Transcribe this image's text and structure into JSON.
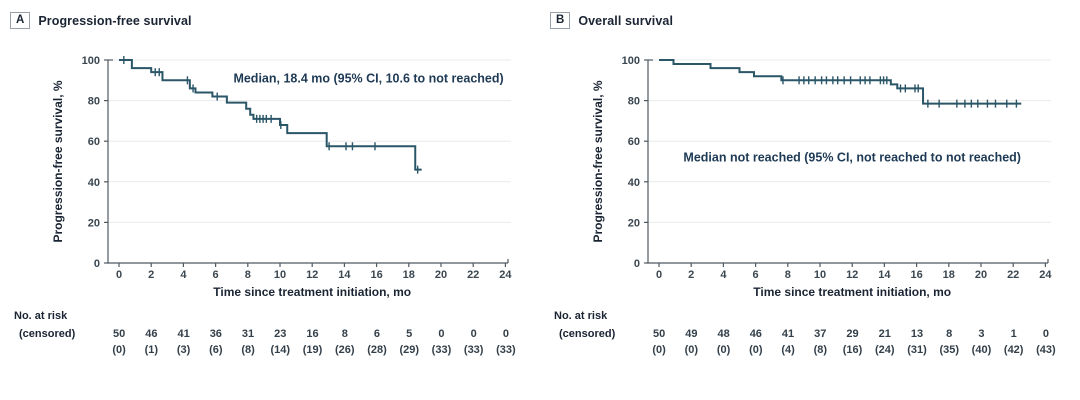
{
  "figure": {
    "background": "#ffffff",
    "axis_color": "#4f5960",
    "grid_color": "#e9ebec",
    "text_color": "#1a2433"
  },
  "chart_data": [
    {
      "type": "line",
      "subtype": "kaplan_meier_step",
      "panel_label": "A",
      "title": "Progression-free survival",
      "annotation": "Median, 18.4 mo (95% CI, 10.6 to not reached)",
      "annotation_anchor": {
        "t": 15.5,
        "pct": 89
      },
      "median_months": "18.4",
      "xlabel": "Time since treatment initiation, mo",
      "ylabel": "Progression-free survival, %",
      "xlim": [
        0,
        24
      ],
      "ylim": [
        0,
        100
      ],
      "x_ticks": [
        0,
        2,
        4,
        6,
        8,
        10,
        12,
        14,
        16,
        18,
        20,
        22,
        24
      ],
      "y_ticks": [
        0,
        20,
        40,
        60,
        80,
        100
      ],
      "grid": "horizontal",
      "legend": "none",
      "color": "#2a5668",
      "steps": [
        [
          0,
          100
        ],
        [
          0.8,
          96
        ],
        [
          2.0,
          94
        ],
        [
          2.7,
          90
        ],
        [
          4.4,
          86
        ],
        [
          4.75,
          84
        ],
        [
          5.8,
          82
        ],
        [
          6.7,
          79
        ],
        [
          7.9,
          76
        ],
        [
          8.15,
          73
        ],
        [
          8.35,
          71
        ],
        [
          10.0,
          68
        ],
        [
          10.45,
          64
        ],
        [
          12.9,
          57.5
        ],
        [
          18.4,
          46
        ]
      ],
      "end_time": 18.8,
      "censor_times": [
        0.3,
        2.25,
        2.5,
        4.25,
        4.6,
        6.1,
        8.55,
        8.75,
        8.95,
        9.15,
        9.45,
        10.05,
        13.05,
        14.1,
        14.5,
        15.9,
        18.55
      ],
      "risk_header": {
        "line1": "No. at risk",
        "line2": "(censored)"
      },
      "risk_times": [
        0,
        2,
        4,
        6,
        8,
        10,
        12,
        14,
        16,
        18,
        20,
        22,
        24
      ],
      "at_risk": [
        "50",
        "46",
        "41",
        "36",
        "31",
        "23",
        "16",
        "8",
        "6",
        "5",
        "0",
        "0",
        "0"
      ],
      "censored": [
        "(0)",
        "(1)",
        "(3)",
        "(6)",
        "(8)",
        "(14)",
        "(19)",
        "(26)",
        "(28)",
        "(29)",
        "(33)",
        "(33)",
        "(33)"
      ]
    },
    {
      "type": "line",
      "subtype": "kaplan_meier_step",
      "panel_label": "B",
      "title": "Overall survival",
      "annotation": "Median not reached (95% CI, not reached to not reached)",
      "annotation_anchor": {
        "t": 12.0,
        "pct": 50
      },
      "median_months": "not reached",
      "xlabel": "Time since treatment initiation, mo",
      "ylabel": "Progression-free survival, %",
      "xlim": [
        0,
        24
      ],
      "ylim": [
        0,
        100
      ],
      "x_ticks": [
        0,
        2,
        4,
        6,
        8,
        10,
        12,
        14,
        16,
        18,
        20,
        22,
        24
      ],
      "y_ticks": [
        0,
        20,
        40,
        60,
        80,
        100
      ],
      "grid": "horizontal",
      "legend": "none",
      "color": "#2a5668",
      "steps": [
        [
          0,
          100
        ],
        [
          0.9,
          98
        ],
        [
          3.2,
          96
        ],
        [
          5.0,
          94
        ],
        [
          5.9,
          92
        ],
        [
          7.6,
          90
        ],
        [
          14.4,
          88
        ],
        [
          14.8,
          86
        ],
        [
          16.4,
          78.5
        ]
      ],
      "end_time": 22.5,
      "censor_times": [
        7.7,
        8.7,
        9.0,
        9.3,
        9.7,
        10.1,
        10.4,
        10.8,
        11.1,
        11.5,
        11.9,
        12.5,
        12.8,
        13.1,
        13.75,
        13.95,
        14.15,
        15.0,
        15.3,
        15.9,
        16.1,
        16.7,
        17.4,
        18.5,
        19.0,
        19.4,
        19.8,
        20.4,
        20.9,
        21.6,
        22.2
      ],
      "risk_header": {
        "line1": "No. at risk",
        "line2": "(censored)"
      },
      "risk_times": [
        0,
        2,
        4,
        6,
        8,
        10,
        12,
        14,
        16,
        18,
        20,
        22,
        24
      ],
      "at_risk": [
        "50",
        "49",
        "48",
        "46",
        "41",
        "37",
        "29",
        "21",
        "13",
        "8",
        "3",
        "1",
        "0"
      ],
      "censored": [
        "(0)",
        "(0)",
        "(0)",
        "(0)",
        "(4)",
        "(8)",
        "(16)",
        "(24)",
        "(31)",
        "(35)",
        "(40)",
        "(42)",
        "(43)"
      ]
    }
  ]
}
